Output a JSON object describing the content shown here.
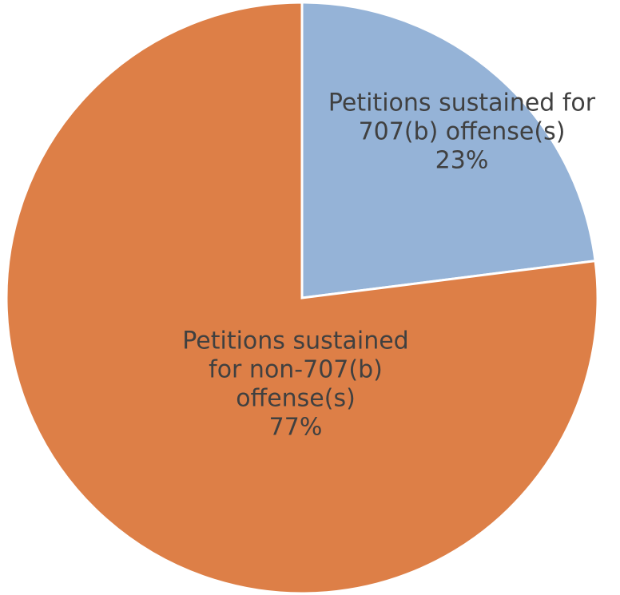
{
  "chart_data": {
    "type": "pie",
    "title": "",
    "slices": [
      {
        "category": "Petitions sustained for 707(b) offense(s)",
        "label_lines": [
          "Petitions sustained for",
          "707(b) offense(s)"
        ],
        "value": 23,
        "percent_label": "23%",
        "color": "#95B3D7"
      },
      {
        "category": "Petitions sustained for non-707(b) offense(s)",
        "label_lines": [
          "Petitions sustained",
          "for non-707(b)",
          "offense(s)"
        ],
        "value": 77,
        "percent_label": "77%",
        "color": "#DD7F47"
      }
    ],
    "start": "12 o'clock",
    "direction": "clockwise",
    "legend": "none"
  }
}
